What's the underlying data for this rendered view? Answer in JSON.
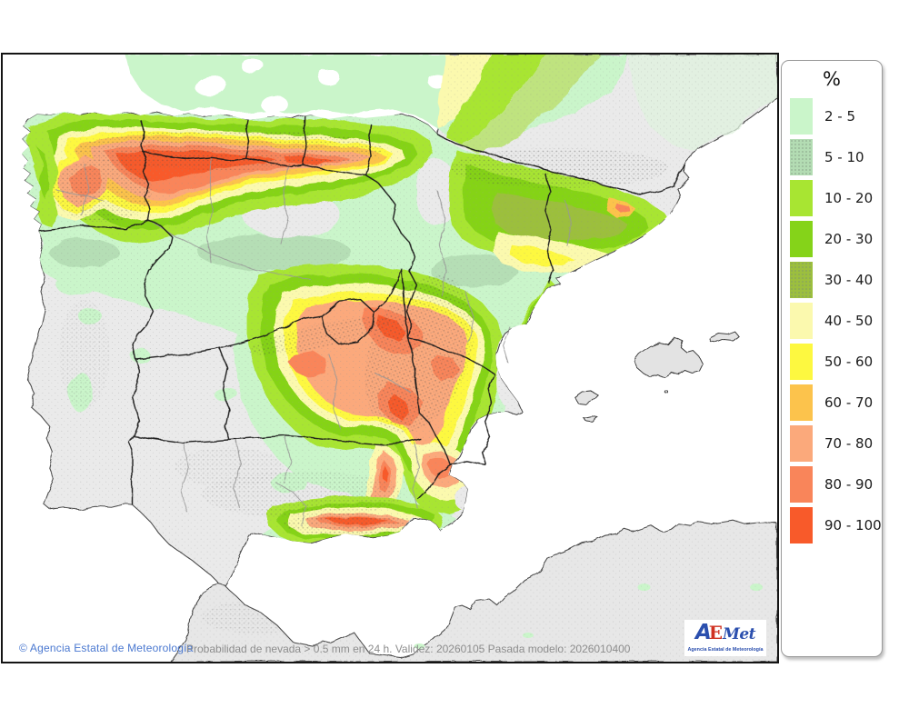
{
  "legend": {
    "title": "%",
    "items": [
      {
        "range": "2 - 5",
        "color": "#caf5ca",
        "textured": false
      },
      {
        "range": "5 - 10",
        "color": "#b3dcb3",
        "textured": true
      },
      {
        "range": "10 - 20",
        "color": "#a8e532",
        "textured": false
      },
      {
        "range": "20 - 30",
        "color": "#85d319",
        "textured": false
      },
      {
        "range": "30 - 40",
        "color": "#9cbf3e",
        "textured": true
      },
      {
        "range": "40 - 50",
        "color": "#fbf9ae",
        "textured": false
      },
      {
        "range": "50 - 60",
        "color": "#fdf840",
        "textured": false
      },
      {
        "range": "60 - 70",
        "color": "#fcc34c",
        "textured": false
      },
      {
        "range": "70 - 80",
        "color": "#fba97b",
        "textured": false
      },
      {
        "range": "80 - 90",
        "color": "#f9855a",
        "textured": false
      },
      {
        "range": "90 - 100",
        "color": "#f85a2a",
        "textured": false
      }
    ]
  },
  "footer": {
    "copyright": "© Agencia Estatal de Meteorología",
    "caption": "Probabilidad de nevada > 0.5 mm en 24 h. Validez: 20260105 Pasada modelo: 2026010400"
  },
  "logo": {
    "a": "A",
    "e": "E",
    "met": "Met",
    "subtitle": "Agencia Estatal de Meteorología"
  }
}
